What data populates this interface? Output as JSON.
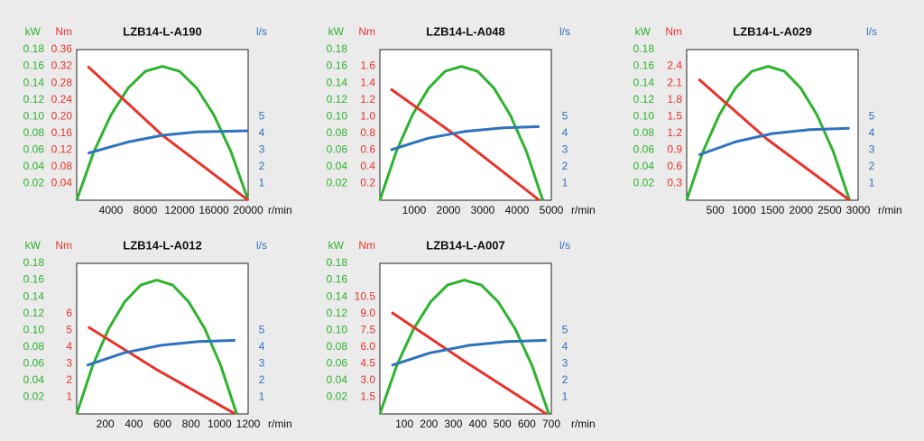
{
  "chart_data": [
    {
      "type": "line",
      "title": "LZB14-L-A190",
      "xlabel": "r/min",
      "xlim": [
        0,
        20000
      ],
      "xticks": [
        4000,
        8000,
        12000,
        16000,
        20000
      ],
      "ylim": [
        0,
        0.18
      ],
      "yticks": [
        0.02,
        0.04,
        0.06,
        0.08,
        {
          "value": 0.1,
          "label": "0.10"
        },
        0.12,
        0.14,
        0.16,
        0.18
      ],
      "y2lim": [
        0,
        0.36
      ],
      "y2ticks": [
        0.04,
        0.08,
        0.12,
        0.16,
        {
          "value": 0.2,
          "label": "0.20"
        },
        0.24,
        0.28,
        0.32,
        0.36
      ],
      "y3lim": [
        0,
        9
      ],
      "y3ticks": [
        1,
        2,
        3,
        4,
        5
      ],
      "series": [
        {
          "name": "kW",
          "color": "#2db32d",
          "axis": "y",
          "x": [
            0,
            2000,
            4000,
            6000,
            8000,
            10000,
            12000,
            14000,
            16000,
            18000,
            20000
          ],
          "values": [
            0,
            0.058,
            0.102,
            0.134,
            0.154,
            0.16,
            0.154,
            0.134,
            0.102,
            0.058,
            0
          ]
        },
        {
          "name": "Nm",
          "color": "#e8332a",
          "axis": "y2",
          "x": [
            1300,
            10000,
            20000
          ],
          "values": [
            0.32,
            0.155,
            0
          ]
        },
        {
          "name": "l/s",
          "color": "#2f72c0",
          "axis": "y3",
          "x": [
            1300,
            6000,
            10000,
            14000,
            20000
          ],
          "values": [
            2.8,
            3.48,
            3.88,
            4.08,
            4.15
          ]
        }
      ]
    },
    {
      "type": "line",
      "title": "LZB14-L-A048",
      "xlabel": "r/min",
      "xlim": [
        0,
        5000
      ],
      "xticks": [
        1000,
        2000,
        3000,
        4000,
        5000
      ],
      "ylim": [
        0,
        0.18
      ],
      "yticks": [
        0.02,
        0.04,
        0.06,
        0.08,
        {
          "value": 0.1,
          "label": "0.10"
        },
        0.12,
        0.14,
        0.16,
        0.18
      ],
      "y2lim": [
        0,
        1.8
      ],
      "y2ticks": [
        0.2,
        0.4,
        0.6,
        0.8,
        {
          "value": 1,
          "label": "1.0"
        },
        1.2,
        1.4,
        1.6
      ],
      "y3lim": [
        0,
        9
      ],
      "y3ticks": [
        1,
        2,
        3,
        4,
        5
      ],
      "series": [
        {
          "name": "kW",
          "color": "#2db32d",
          "axis": "y",
          "x": [
            0,
            475,
            950,
            1425,
            1900,
            2375,
            2850,
            3325,
            3800,
            4275,
            4750
          ],
          "values": [
            0,
            0.058,
            0.102,
            0.134,
            0.154,
            0.16,
            0.154,
            0.134,
            0.102,
            0.058,
            0
          ]
        },
        {
          "name": "Nm",
          "color": "#e8332a",
          "axis": "y2",
          "x": [
            314,
            2400,
            4650
          ],
          "values": [
            1.33,
            0.72,
            0
          ]
        },
        {
          "name": "l/s",
          "color": "#2f72c0",
          "axis": "y3",
          "x": [
            314,
            1400,
            2500,
            3600,
            4650
          ],
          "values": [
            3.0,
            3.7,
            4.12,
            4.33,
            4.4
          ]
        }
      ]
    },
    {
      "type": "line",
      "title": "LZB14-L-A029",
      "xlabel": "r/min",
      "xlim": [
        0,
        3000
      ],
      "xticks": [
        500,
        1000,
        1500,
        2000,
        2500,
        3000
      ],
      "ylim": [
        0,
        0.18
      ],
      "yticks": [
        0.02,
        0.04,
        0.06,
        0.08,
        {
          "value": 0.1,
          "label": "0.10"
        },
        0.12,
        0.14,
        0.16,
        0.18
      ],
      "y2lim": [
        0,
        2.7
      ],
      "y2ticks": [
        0.3,
        0.6,
        0.9,
        1.2,
        1.5,
        1.8,
        2.1,
        2.4
      ],
      "y3lim": [
        0,
        9
      ],
      "y3ticks": [
        1,
        2,
        3,
        4,
        5
      ],
      "series": [
        {
          "name": "kW",
          "color": "#2db32d",
          "axis": "y",
          "x": [
            0,
            285,
            570,
            855,
            1140,
            1425,
            1710,
            1995,
            2280,
            2565,
            2850
          ],
          "values": [
            0,
            0.058,
            0.102,
            0.134,
            0.154,
            0.16,
            0.154,
            0.134,
            0.102,
            0.058,
            0
          ]
        },
        {
          "name": "Nm",
          "color": "#e8332a",
          "axis": "y2",
          "x": [
            210,
            1400,
            2850
          ],
          "values": [
            2.17,
            1.1,
            0
          ]
        },
        {
          "name": "l/s",
          "color": "#2f72c0",
          "axis": "y3",
          "x": [
            210,
            860,
            1500,
            2150,
            2850
          ],
          "values": [
            2.7,
            3.5,
            3.98,
            4.22,
            4.3
          ]
        }
      ]
    },
    {
      "type": "line",
      "title": "LZB14-L-A012",
      "xlabel": "r/min",
      "xlim": [
        0,
        1200
      ],
      "xticks": [
        200,
        400,
        600,
        800,
        1000,
        1200
      ],
      "ylim": [
        0,
        0.18
      ],
      "yticks": [
        0.02,
        0.04,
        0.06,
        0.08,
        {
          "value": 0.1,
          "label": "0.10"
        },
        0.12,
        0.14,
        0.16,
        0.18
      ],
      "y2lim": [
        0,
        9
      ],
      "y2ticks": [
        1,
        2,
        3,
        4,
        5,
        6
      ],
      "y3lim": [
        0,
        9
      ],
      "y3ticks": [
        1,
        2,
        3,
        4,
        5
      ],
      "series": [
        {
          "name": "kW",
          "color": "#2db32d",
          "axis": "y",
          "x": [
            0,
            112,
            224,
            336,
            448,
            560,
            672,
            784,
            896,
            1008,
            1120
          ],
          "values": [
            0,
            0.058,
            0.102,
            0.134,
            0.154,
            0.16,
            0.154,
            0.134,
            0.102,
            0.058,
            0
          ]
        },
        {
          "name": "Nm",
          "color": "#e8332a",
          "axis": "y2",
          "x": [
            80,
            550,
            1110
          ],
          "values": [
            5.2,
            2.7,
            0
          ]
        },
        {
          "name": "l/s",
          "color": "#2f72c0",
          "axis": "y3",
          "x": [
            70,
            330,
            590,
            850,
            1110
          ],
          "values": [
            2.9,
            3.65,
            4.1,
            4.33,
            4.4
          ]
        }
      ]
    },
    {
      "type": "line",
      "title": "LZB14-L-A007",
      "xlabel": "r/min",
      "xlim": [
        0,
        700
      ],
      "xticks": [
        100,
        200,
        300,
        400,
        500,
        600,
        700
      ],
      "ylim": [
        0,
        0.18
      ],
      "yticks": [
        0.02,
        0.04,
        0.06,
        0.08,
        {
          "value": 0.1,
          "label": "0.10"
        },
        0.12,
        0.14,
        0.16,
        0.18
      ],
      "y2lim": [
        0,
        13.5
      ],
      "y2ticks": [
        1.5,
        {
          "value": 3,
          "label": "3.0"
        },
        4.5,
        {
          "value": 6,
          "label": "6.0"
        },
        7.5,
        {
          "value": 9,
          "label": "9.0"
        },
        10.5
      ],
      "y3lim": [
        0,
        9
      ],
      "y3ticks": [
        1,
        2,
        3,
        4,
        5
      ],
      "series": [
        {
          "name": "kW",
          "color": "#2db32d",
          "axis": "y",
          "x": [
            0,
            69,
            138,
            207,
            276,
            345,
            414,
            483,
            552,
            621,
            690
          ],
          "values": [
            0,
            0.058,
            0.102,
            0.134,
            0.154,
            0.16,
            0.154,
            0.134,
            0.102,
            0.058,
            0
          ]
        },
        {
          "name": "Nm",
          "color": "#e8332a",
          "axis": "y2",
          "x": [
            48,
            340,
            680
          ],
          "values": [
            9.1,
            4.8,
            0
          ]
        },
        {
          "name": "l/s",
          "color": "#2f72c0",
          "axis": "y3",
          "x": [
            48,
            205,
            365,
            520,
            680
          ],
          "values": [
            2.9,
            3.65,
            4.1,
            4.33,
            4.4
          ]
        }
      ]
    }
  ]
}
